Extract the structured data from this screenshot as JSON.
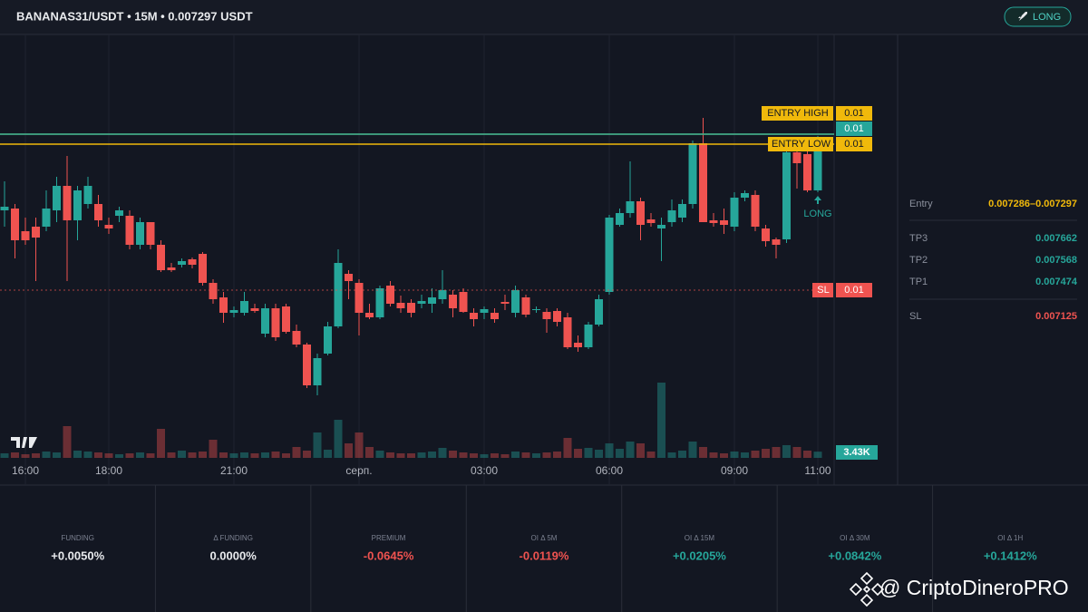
{
  "header": {
    "title": "BANANAS31/USDT • 15M • 0.007297 USDT",
    "button": "LONG"
  },
  "chart_data": {
    "type": "candlestick",
    "categories": [
      null,
      null,
      "16:00",
      null,
      null,
      null,
      null,
      null,
      null,
      null,
      "18:00",
      null,
      null,
      null,
      null,
      null,
      null,
      null,
      null,
      null,
      null,
      null,
      "21:00",
      null,
      null,
      null,
      null,
      null,
      null,
      null,
      null,
      null,
      null,
      null,
      "серп.",
      null,
      null,
      null,
      null,
      null,
      null,
      null,
      null,
      null,
      null,
      null,
      "03:00",
      null,
      null,
      null,
      null,
      null,
      null,
      null,
      null,
      null,
      null,
      null,
      "06:00",
      null,
      null,
      null,
      null,
      null,
      null,
      null,
      null,
      null,
      null,
      null,
      "09:00",
      null,
      null,
      null,
      null,
      null,
      null,
      null,
      "11:00"
    ],
    "open": [
      0.007213,
      0.007215,
      0.00719,
      0.007195,
      0.007195,
      0.007213,
      0.00724,
      0.007202,
      0.00722,
      0.00722,
      0.007197,
      0.007207,
      0.007207,
      0.007175,
      0.0072,
      0.007175,
      0.00715,
      0.007153,
      0.007159,
      0.007165,
      0.007133,
      0.007117,
      0.0071,
      0.0071,
      0.007105,
      0.007077,
      0.007105,
      0.007107,
      0.00708,
      0.007065,
      0.00702,
      0.007055,
      0.007085,
      0.007143,
      0.007133,
      0.0071,
      0.007095,
      0.00713,
      0.007111,
      0.007111,
      0.00711,
      0.00711,
      0.007115,
      0.00712,
      0.007123,
      0.0071,
      0.0071,
      0.0071,
      0.007112,
      0.0071,
      0.007117,
      0.007103,
      0.007101,
      0.007102,
      0.007095,
      0.007067,
      0.007062,
      0.007087,
      0.007123,
      0.007197,
      0.00721,
      0.007223,
      0.007203,
      0.007193,
      0.0072,
      0.007205,
      0.00722,
      0.007287,
      0.007202,
      0.007202,
      0.007195,
      0.007227,
      0.00723,
      0.007193,
      0.007181,
      0.007181,
      0.007277,
      0.007275,
      0.007235
    ],
    "high": [
      0.007245,
      0.00722,
      0.007205,
      0.007205,
      0.007235,
      0.00725,
      0.007273,
      0.00724,
      0.00725,
      0.00723,
      0.007205,
      0.007217,
      0.007213,
      0.007205,
      0.0072,
      0.00718,
      0.007155,
      0.00716,
      0.007161,
      0.007167,
      0.007137,
      0.007123,
      0.007107,
      0.007123,
      0.00711,
      0.00711,
      0.00711,
      0.00711,
      0.007087,
      0.007067,
      0.007055,
      0.00709,
      0.00717,
      0.007147,
      0.007137,
      0.00711,
      0.00713,
      0.007135,
      0.007119,
      0.007115,
      0.00712,
      0.007127,
      0.007147,
      0.007125,
      0.007127,
      0.007105,
      0.007107,
      0.007105,
      0.00712,
      0.00713,
      0.00712,
      0.007107,
      0.007105,
      0.007105,
      0.0071,
      0.007075,
      0.00709,
      0.00712,
      0.007208,
      0.007215,
      0.007267,
      0.007227,
      0.00721,
      0.007205,
      0.007225,
      0.007225,
      0.00729,
      0.007315,
      0.00721,
      0.007215,
      0.007233,
      0.007235,
      0.007235,
      0.007197,
      0.007183,
      0.007285,
      0.00728,
      0.007285,
      0.007295
    ],
    "low": [
      0.007195,
      0.00716,
      0.007175,
      0.007135,
      0.00719,
      0.0072,
      0.007135,
      0.00718,
      0.007215,
      0.007195,
      0.007187,
      0.0072,
      0.00717,
      0.00717,
      0.00717,
      0.007145,
      0.007145,
      0.00715,
      0.007149,
      0.00713,
      0.00711,
      0.007089,
      0.007095,
      0.007097,
      0.0071,
      0.007073,
      0.007069,
      0.007077,
      0.007062,
      0.007017,
      0.007009,
      0.007053,
      0.007083,
      0.007115,
      0.007075,
      0.007093,
      0.007093,
      0.007107,
      0.0071,
      0.007095,
      0.007105,
      0.0071,
      0.00711,
      0.007095,
      0.0071,
      0.007085,
      0.007093,
      0.007089,
      0.007103,
      0.007095,
      0.007095,
      0.0071,
      0.007078,
      0.007085,
      0.00706,
      0.007057,
      0.00706,
      0.007085,
      0.00712,
      0.007195,
      0.007205,
      0.00718,
      0.007195,
      0.007157,
      0.007195,
      0.0072,
      0.007215,
      0.0072,
      0.007195,
      0.007187,
      0.00719,
      0.007223,
      0.00719,
      0.007173,
      0.00716,
      0.007177,
      0.007237,
      0.007233,
      0.007233
    ],
    "close": [
      0.007217,
      0.00718,
      0.00718,
      0.007183,
      0.007215,
      0.00724,
      0.007202,
      0.007235,
      0.00724,
      0.007202,
      0.007193,
      0.007213,
      0.007175,
      0.0072,
      0.007175,
      0.007147,
      0.007147,
      0.007157,
      0.007153,
      0.007133,
      0.007115,
      0.0071,
      0.007103,
      0.007113,
      0.007102,
      0.007105,
      0.007073,
      0.007079,
      0.007065,
      0.00702,
      0.00705,
      0.007085,
      0.007155,
      0.007135,
      0.0071,
      0.007095,
      0.007127,
      0.00711,
      0.007105,
      0.0071,
      0.007113,
      0.007117,
      0.007125,
      0.007105,
      0.007101,
      0.007093,
      0.007104,
      0.007093,
      0.00711,
      0.007125,
      0.007098,
      0.007104,
      0.007093,
      0.00709,
      0.007062,
      0.007062,
      0.007087,
      0.007115,
      0.007205,
      0.00721,
      0.007223,
      0.007197,
      0.007199,
      0.007197,
      0.007213,
      0.00722,
      0.007287,
      0.0072,
      0.007199,
      0.007197,
      0.007227,
      0.007232,
      0.007195,
      0.007179,
      0.007175,
      0.007277,
      0.007265,
      0.007235,
      0.00728
    ],
    "up_color": "#26a69a",
    "down_color": "#ef5350",
    "ylim": [
      0.006935,
      0.007407
    ],
    "volume": {
      "values": [
        2500,
        3000,
        2000,
        2500,
        3500,
        3000,
        17500,
        4000,
        3500,
        3000,
        2500,
        2000,
        2500,
        3000,
        2500,
        16000,
        3000,
        4000,
        3000,
        3500,
        10000,
        3000,
        2500,
        3000,
        2500,
        3000,
        3500,
        2500,
        6000,
        4000,
        14000,
        4500,
        21000,
        8000,
        14000,
        6000,
        4000,
        3000,
        2500,
        2500,
        3000,
        3500,
        5500,
        4000,
        3000,
        2500,
        2000,
        2500,
        2000,
        3500,
        3000,
        2500,
        3000,
        3500,
        11000,
        5000,
        5500,
        4500,
        8000,
        5000,
        9000,
        8000,
        3500,
        41500,
        3000,
        4000,
        9000,
        6000,
        3000,
        2500,
        3500,
        3000,
        4000,
        5000,
        6000,
        7000,
        6000,
        4000,
        3430
      ],
      "ylim": [
        0,
        50000
      ],
      "last_value_label": "3.43K"
    },
    "levels": [
      {
        "name": "ENTRY HIGH",
        "value": 0.007297,
        "label": "0.01",
        "color": "#f0b90b"
      },
      {
        "value": 0.007297,
        "label": "0.01",
        "color": "#26a69a"
      },
      {
        "name": "ENTRY LOW",
        "value": 0.007286,
        "label": "0.01",
        "color": "#f0b90b"
      },
      {
        "name": "SL",
        "value": 0.007125,
        "label": "0.01",
        "color": "#ef5350"
      }
    ],
    "annotation": "LONG"
  },
  "panel": {
    "rows": [
      {
        "label": "Entry",
        "value": "0.007286–0.007297",
        "color": "#f0b90b"
      },
      {
        "label": "TP3",
        "value": "0.007662",
        "color": "#26a69a"
      },
      {
        "label": "TP2",
        "value": "0.007568",
        "color": "#26a69a"
      },
      {
        "label": "TP1",
        "value": "0.007474",
        "color": "#26a69a"
      },
      {
        "label": "SL",
        "value": "0.007125",
        "color": "#ef5350"
      }
    ]
  },
  "stats": [
    {
      "label": "FUNDING",
      "value": "+0.0050%",
      "color": "#e8eaed"
    },
    {
      "label": "Δ FUNDING",
      "value": "0.0000%",
      "color": "#e8eaed"
    },
    {
      "label": "PREMIUM",
      "value": "-0.0645%",
      "color": "#ef5350"
    },
    {
      "label": "OI Δ 5M",
      "value": "-0.0119%",
      "color": "#ef5350"
    },
    {
      "label": "OI Δ 15M",
      "value": "+0.0205%",
      "color": "#26a69a"
    },
    {
      "label": "OI Δ 30M",
      "value": "+0.0842%",
      "color": "#26a69a"
    },
    {
      "label": "OI Δ 1H",
      "value": "+0.1412%",
      "color": "#26a69a"
    }
  ],
  "watermark": "@ CriptoDineroPRO"
}
